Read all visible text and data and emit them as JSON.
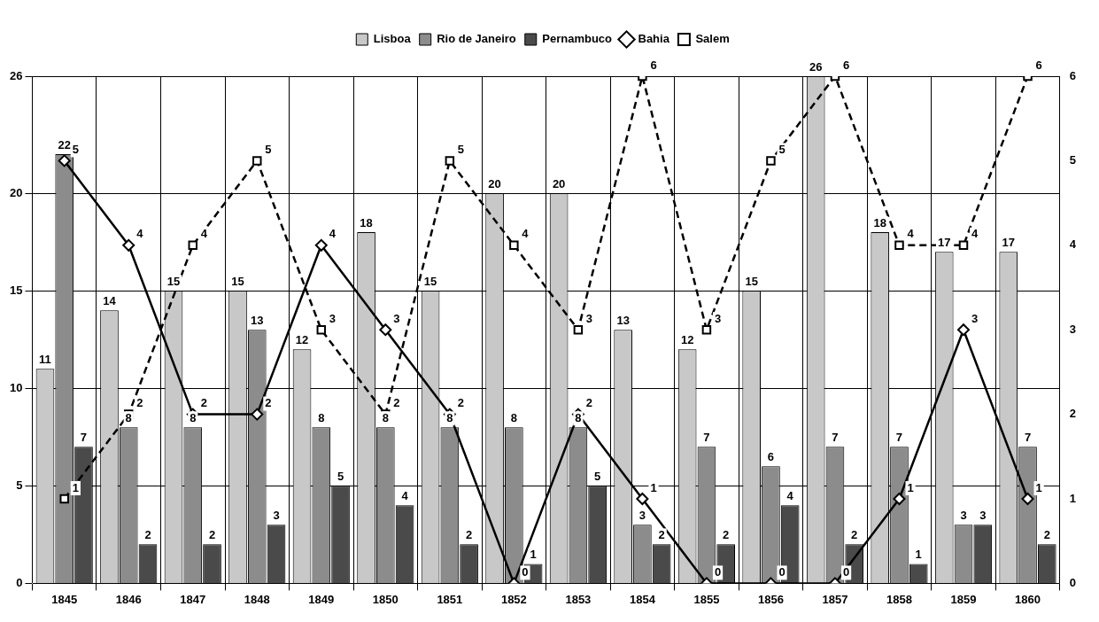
{
  "chart_data": {
    "type": "bar",
    "categories": [
      "1845",
      "1846",
      "1847",
      "1848",
      "1849",
      "1850",
      "1851",
      "1852",
      "1853",
      "1854",
      "1855",
      "1856",
      "1857",
      "1858",
      "1859",
      "1860"
    ],
    "series": [
      {
        "name": "Lisboa",
        "color": "#c8c8c8",
        "values": [
          11,
          14,
          15,
          15,
          12,
          18,
          15,
          20,
          20,
          13,
          12,
          15,
          26,
          18,
          17,
          17
        ]
      },
      {
        "name": "Rio de Janeiro",
        "color": "#8c8c8c",
        "values": [
          22,
          8,
          8,
          13,
          8,
          8,
          8,
          8,
          8,
          3,
          7,
          6,
          7,
          7,
          3,
          7
        ]
      },
      {
        "name": "Pernambuco",
        "color": "#4a4a4a",
        "values": [
          7,
          2,
          2,
          3,
          5,
          4,
          2,
          1,
          5,
          2,
          2,
          4,
          2,
          1,
          3,
          2
        ]
      },
      {
        "name": "Bahia",
        "type": "line",
        "axis": "y2",
        "color": "#000000",
        "marker": "diamond",
        "line_style": "solid",
        "values": [
          5,
          4,
          2,
          2,
          4,
          3,
          2,
          0,
          2,
          1,
          0,
          0,
          0,
          1,
          3,
          1
        ]
      },
      {
        "name": "Salem",
        "type": "line",
        "axis": "y2",
        "color": "#000000",
        "marker": "square",
        "line_style": "dashed",
        "values": [
          1,
          2,
          4,
          5,
          3,
          2,
          5,
          4,
          3,
          6,
          3,
          5,
          6,
          4,
          4,
          6
        ]
      }
    ],
    "ylim": [
      0,
      26
    ],
    "yticks": [
      0,
      5,
      10,
      15,
      20,
      26
    ],
    "y2lim": [
      0,
      6
    ],
    "y2ticks": [
      0,
      1,
      2,
      3,
      4,
      5,
      6
    ],
    "grid": true,
    "legend": "top",
    "data_labels": true
  }
}
